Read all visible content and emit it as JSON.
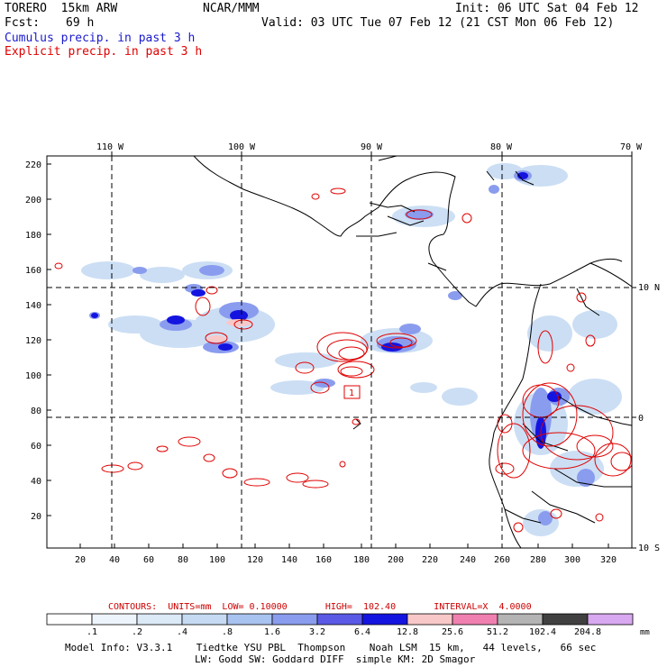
{
  "header": {
    "model": "TORERO  15km ARW",
    "org": "NCAR/MMM",
    "init": "Init: 06 UTC Sat 04 Feb 12",
    "fcst_label": "Fcst:",
    "fcst_value": "69 h",
    "valid": "Valid: 03 UTC Tue 07 Feb 12 (21 CST Mon 06 Feb 12)",
    "field1": "Cumulus precip. in past 3 h",
    "field2": "Explicit precip. in past 3 h",
    "field1_color": "#1a1acc",
    "field2_color": "#e00000"
  },
  "map": {
    "lon_labels": [
      "110 W",
      "100 W",
      "90 W",
      "80 W",
      "70 W"
    ],
    "lat_labels": [
      "10 N",
      "0",
      "10 S"
    ],
    "x_ticks": [
      "20",
      "40",
      "60",
      "80",
      "100",
      "120",
      "140",
      "160",
      "180",
      "200",
      "220",
      "240",
      "260",
      "280",
      "300",
      "320"
    ],
    "y_ticks": [
      "20",
      "40",
      "60",
      "80",
      "100",
      "120",
      "140",
      "160",
      "180",
      "200",
      "220"
    ],
    "box_label": "1",
    "land_color": "#000000",
    "contour_color": "#e00000"
  },
  "contours": {
    "text": "CONTOURS:  UNITS=mm  LOW= 0.10000       HIGH=  102.40       INTERVAL=X  4.0000",
    "color": "#cc0000"
  },
  "colorbar": {
    "labels": [
      ".1",
      ".2",
      ".4",
      ".8",
      "1.6",
      "3.2",
      "6.4",
      "12.8",
      "25.6",
      "51.2",
      "102.4",
      "204.8"
    ],
    "colors": [
      "#ffffff",
      "#eef4fb",
      "#dce9f7",
      "#c6dbf3",
      "#a9c3f0",
      "#8a9cee",
      "#5a5ae6",
      "#1414e0",
      "#f8c8c8",
      "#f080b0",
      "#b4b4b4",
      "#404040",
      "#d8a8f0"
    ],
    "unit": "mm"
  },
  "footer": {
    "line1": "Model Info: V3.3.1    Tiedtke YSU PBL  Thompson    Noah LSM  15 km,   44 levels,   66 sec",
    "line2": "LW: Godd SW: Goddard DIFF  simple KM: 2D Smagor"
  }
}
